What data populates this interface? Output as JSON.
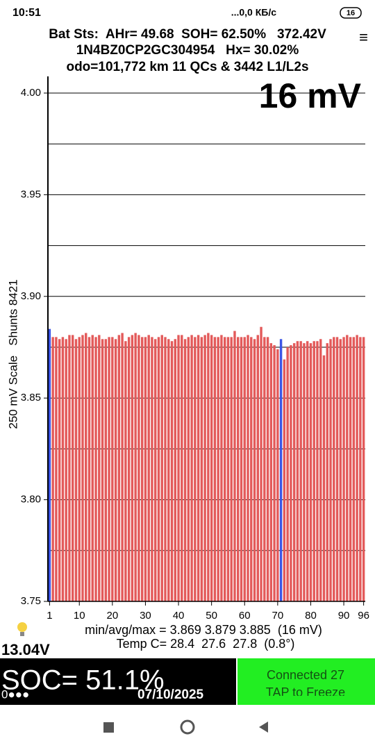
{
  "status_bar": {
    "time": "10:51",
    "network": "...0,0 КБ/с",
    "battery": "16"
  },
  "header": {
    "line1": "Bat Sts:  AHr= 49.68  SOH= 62.50%   372.42V",
    "line2": "1N4BZ0CP2GC304954   Hx= 30.02%",
    "line3": "odo=101,772 km 11 QCs & 3442 L1/L2s",
    "menu": "≡"
  },
  "chart_data": {
    "type": "bar",
    "big_label": "16 mV",
    "y_label": "250 mV Scale   Shunts 8421",
    "x": [
      1,
      2,
      3,
      4,
      5,
      6,
      7,
      8,
      9,
      10,
      11,
      12,
      13,
      14,
      15,
      16,
      17,
      18,
      19,
      20,
      21,
      22,
      23,
      24,
      25,
      26,
      27,
      28,
      29,
      30,
      31,
      32,
      33,
      34,
      35,
      36,
      37,
      38,
      39,
      40,
      41,
      42,
      43,
      44,
      45,
      46,
      47,
      48,
      49,
      50,
      51,
      52,
      53,
      54,
      55,
      56,
      57,
      58,
      59,
      60,
      61,
      62,
      63,
      64,
      65,
      66,
      67,
      68,
      69,
      70,
      71,
      72,
      73,
      74,
      75,
      76,
      77,
      78,
      79,
      80,
      81,
      82,
      83,
      84,
      85,
      86,
      87,
      88,
      89,
      90,
      91,
      92,
      93,
      94,
      95,
      96
    ],
    "values": [
      3.884,
      3.88,
      3.88,
      3.879,
      3.88,
      3.879,
      3.881,
      3.881,
      3.879,
      3.88,
      3.881,
      3.882,
      3.88,
      3.881,
      3.88,
      3.881,
      3.879,
      3.879,
      3.88,
      3.88,
      3.879,
      3.881,
      3.882,
      3.878,
      3.88,
      3.881,
      3.882,
      3.881,
      3.88,
      3.88,
      3.881,
      3.88,
      3.879,
      3.88,
      3.881,
      3.88,
      3.879,
      3.878,
      3.879,
      3.881,
      3.881,
      3.879,
      3.88,
      3.881,
      3.88,
      3.881,
      3.88,
      3.881,
      3.882,
      3.881,
      3.88,
      3.88,
      3.881,
      3.88,
      3.88,
      3.88,
      3.883,
      3.88,
      3.88,
      3.88,
      3.881,
      3.88,
      3.879,
      3.881,
      3.885,
      3.88,
      3.88,
      3.877,
      3.876,
      3.874,
      3.879,
      3.869,
      3.875,
      3.876,
      3.877,
      3.878,
      3.878,
      3.877,
      3.878,
      3.877,
      3.878,
      3.878,
      3.879,
      3.871,
      3.877,
      3.879,
      3.88,
      3.88,
      3.879,
      3.88,
      3.881,
      3.88,
      3.88,
      3.881,
      3.88,
      3.88
    ],
    "color": "#e35a5a",
    "highlight_x": [
      1,
      71
    ],
    "highlight_color": "#3b55e6",
    "xlim": [
      0.5,
      96.5
    ],
    "xticks": [
      1,
      10,
      20,
      30,
      40,
      50,
      60,
      70,
      80,
      90,
      96
    ],
    "ylim": [
      3.75,
      4.0
    ],
    "yticks": [
      3.75,
      {
        "value": 3.8,
        "label": "3.80"
      },
      3.85,
      {
        "value": 3.9,
        "label": "3.90"
      },
      3.95,
      {
        "value": 4.0,
        "label": "4.00"
      }
    ],
    "minor_grid": [
      3.775,
      3.825,
      3.875,
      3.925,
      3.975
    ],
    "grid": true
  },
  "footer": {
    "stats": "min/avg/max = 3.869 3.879 3.885  (16 mV)",
    "temp": "Temp C= 28.4  27.6  27.8  (0.8°)",
    "voltage": "13.04V",
    "soc": "SOC= 51.1%",
    "date": "07/10/2025",
    "dots": "0●●●",
    "connected": "Connected 27",
    "tap": "TAP to Freeze"
  }
}
